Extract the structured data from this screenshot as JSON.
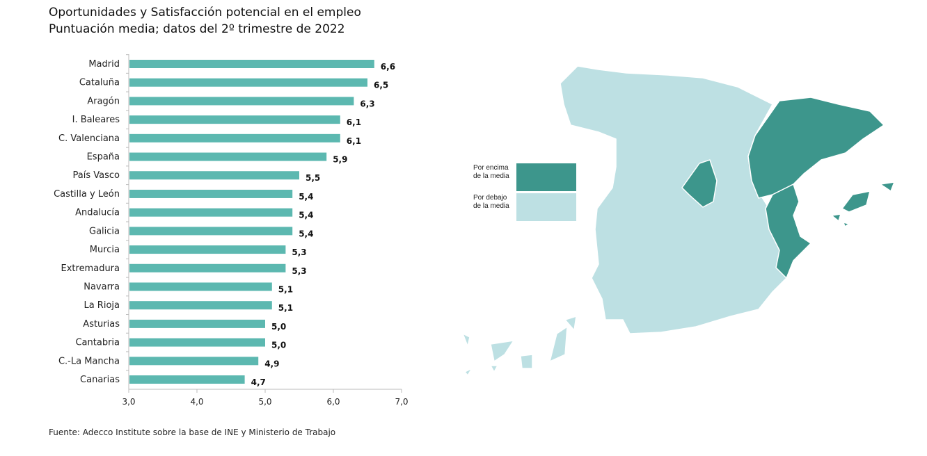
{
  "chart_data": {
    "type": "bar",
    "orientation": "horizontal",
    "title": "Oportunidades y Satisfacción potencial en el empleo",
    "subtitle": "Puntuación media; datos del 2º trimestre de 2022",
    "categories": [
      "Madrid",
      "Cataluña",
      "Aragón",
      "I. Baleares",
      "C. Valenciana",
      "España",
      "País Vasco",
      "Castilla y León",
      "Andalucía",
      "Galicia",
      "Murcia",
      "Extremadura",
      "Navarra",
      "La Rioja",
      "Asturias",
      "Cantabria",
      "C.-La Mancha",
      "Canarias"
    ],
    "values": [
      6.6,
      6.5,
      6.3,
      6.1,
      6.1,
      5.9,
      5.5,
      5.4,
      5.4,
      5.4,
      5.3,
      5.3,
      5.1,
      5.1,
      5.0,
      5.0,
      4.9,
      4.7
    ],
    "value_labels": [
      "6,6",
      "6,5",
      "6,3",
      "6,1",
      "6,1",
      "5,9",
      "5,5",
      "5,4",
      "5,4",
      "5,4",
      "5,3",
      "5,3",
      "5,1",
      "5,1",
      "5,0",
      "5,0",
      "4,9",
      "4,7"
    ],
    "xlim": [
      3.0,
      7.0
    ],
    "xticks": [
      "3,0",
      "4,0",
      "5,0",
      "6,0",
      "7,0"
    ],
    "grid": false,
    "bar_color": "#5cb8b0"
  },
  "map": {
    "legend": [
      {
        "label_line1": "Por encima",
        "label_line2": "de la media",
        "color": "#3d968c"
      },
      {
        "label_line1": "Por debajo",
        "label_line2": "de la media",
        "color": "#bde0e3"
      }
    ],
    "above_average": [
      "Madrid",
      "Cataluña",
      "Aragón",
      "I. Baleares",
      "C. Valenciana"
    ]
  },
  "source": "Fuente: Adecco Institute sobre la base de INE y Ministerio de Trabajo"
}
